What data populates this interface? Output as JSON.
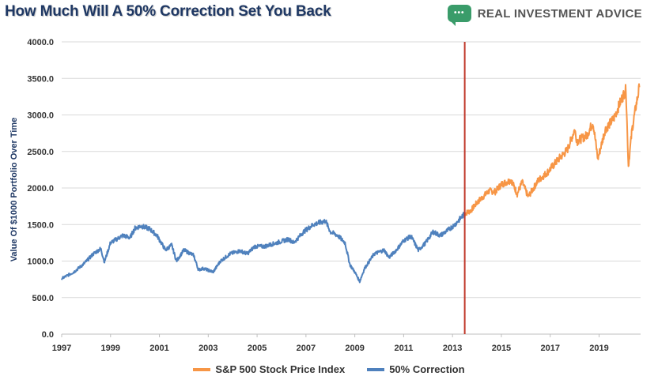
{
  "header": {
    "title": "How Much Will A 50% Correction Set You Back",
    "brand": "REAL INVESTMENT ADVICE",
    "brand_badge": "•••"
  },
  "colors": {
    "sp500": "#f79646",
    "correction": "#4f81bd",
    "marker": "#c0392b",
    "title": "#1f3864",
    "brand_badge": "#3a9c6a"
  },
  "chart_data": {
    "type": "line",
    "title": "How Much Will A 50% Correction Set You Back",
    "ylabel": "Value Of $1000 Portfolio Over Time",
    "xlabel": "",
    "ylim": [
      0,
      4000
    ],
    "xlim": [
      1997,
      2020.7
    ],
    "yticks": [
      "0.0",
      "500.0",
      "1000.0",
      "1500.0",
      "2000.0",
      "2500.0",
      "3000.0",
      "3500.0",
      "4000.0"
    ],
    "xticks": [
      "1997",
      "1999",
      "2001",
      "2003",
      "2005",
      "2007",
      "2009",
      "2011",
      "2013",
      "2015",
      "2017",
      "2019"
    ],
    "grid": "horizontal",
    "legend_position": "bottom",
    "vertical_marker_x": 2013.5,
    "series": [
      {
        "name": "S&P 500 Stock Price Index",
        "points": [
          [
            2013.5,
            1650
          ],
          [
            2013.75,
            1690
          ],
          [
            2014.0,
            1800
          ],
          [
            2014.25,
            1880
          ],
          [
            2014.5,
            1960
          ],
          [
            2014.75,
            1950
          ],
          [
            2015.0,
            2050
          ],
          [
            2015.4,
            2110
          ],
          [
            2015.65,
            1920
          ],
          [
            2015.85,
            2080
          ],
          [
            2016.1,
            1880
          ],
          [
            2016.5,
            2100
          ],
          [
            2016.9,
            2220
          ],
          [
            2017.3,
            2380
          ],
          [
            2017.7,
            2520
          ],
          [
            2018.0,
            2800
          ],
          [
            2018.1,
            2640
          ],
          [
            2018.5,
            2720
          ],
          [
            2018.75,
            2900
          ],
          [
            2018.95,
            2400
          ],
          [
            2019.25,
            2800
          ],
          [
            2019.6,
            2950
          ],
          [
            2019.9,
            3200
          ],
          [
            2020.1,
            3350
          ],
          [
            2020.2,
            2300
          ],
          [
            2020.35,
            2800
          ],
          [
            2020.5,
            3100
          ],
          [
            2020.65,
            3380
          ]
        ]
      },
      {
        "name": "50% Correction",
        "points": [
          [
            1997.0,
            760
          ],
          [
            1997.5,
            850
          ],
          [
            1997.9,
            960
          ],
          [
            1998.3,
            1100
          ],
          [
            1998.6,
            1170
          ],
          [
            1998.75,
            990
          ],
          [
            1999.0,
            1250
          ],
          [
            1999.5,
            1350
          ],
          [
            1999.8,
            1320
          ],
          [
            2000.0,
            1450
          ],
          [
            2000.25,
            1480
          ],
          [
            2000.6,
            1440
          ],
          [
            2000.9,
            1350
          ],
          [
            2001.25,
            1150
          ],
          [
            2001.5,
            1220
          ],
          [
            2001.7,
            1000
          ],
          [
            2002.0,
            1150
          ],
          [
            2002.4,
            1080
          ],
          [
            2002.6,
            880
          ],
          [
            2002.8,
            900
          ],
          [
            2003.2,
            850
          ],
          [
            2003.5,
            1000
          ],
          [
            2003.9,
            1100
          ],
          [
            2004.3,
            1140
          ],
          [
            2004.6,
            1100
          ],
          [
            2004.9,
            1200
          ],
          [
            2005.3,
            1200
          ],
          [
            2005.8,
            1250
          ],
          [
            2006.3,
            1300
          ],
          [
            2006.5,
            1250
          ],
          [
            2006.9,
            1400
          ],
          [
            2007.3,
            1500
          ],
          [
            2007.8,
            1550
          ],
          [
            2008.0,
            1400
          ],
          [
            2008.3,
            1350
          ],
          [
            2008.6,
            1250
          ],
          [
            2008.8,
            950
          ],
          [
            2009.0,
            850
          ],
          [
            2009.2,
            720
          ],
          [
            2009.4,
            900
          ],
          [
            2009.8,
            1100
          ],
          [
            2010.2,
            1150
          ],
          [
            2010.4,
            1050
          ],
          [
            2010.7,
            1150
          ],
          [
            2011.0,
            1280
          ],
          [
            2011.3,
            1340
          ],
          [
            2011.6,
            1150
          ],
          [
            2011.9,
            1250
          ],
          [
            2012.2,
            1400
          ],
          [
            2012.5,
            1350
          ],
          [
            2012.8,
            1420
          ],
          [
            2013.1,
            1500
          ],
          [
            2013.5,
            1650
          ]
        ]
      }
    ]
  }
}
